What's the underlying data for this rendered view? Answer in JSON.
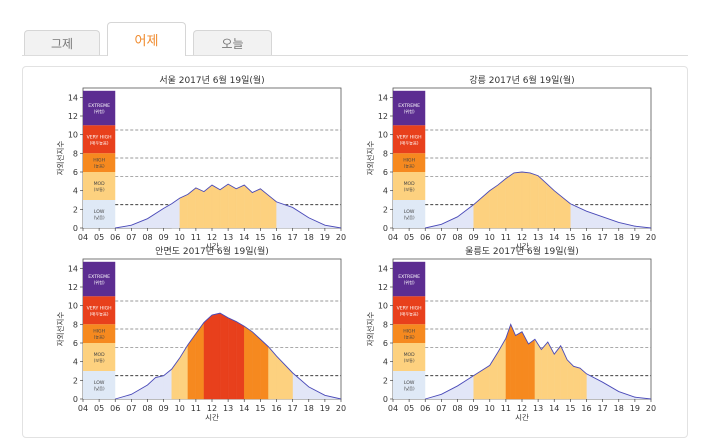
{
  "tabs": [
    {
      "label": "그제",
      "active": false
    },
    {
      "label": "어제",
      "active": true
    },
    {
      "label": "오늘",
      "active": false
    }
  ],
  "colors": {
    "extreme": "#5c2d91",
    "very_high": "#e8401c",
    "high": "#f6891f",
    "moderate": "#fdd17f",
    "low": "#dfe9f6",
    "curve_line": "#4a4ab8",
    "curve_fill": "#e2e6f7",
    "active_tab": "#f08a2c"
  },
  "legend_bands": [
    {
      "label": "EXTREME",
      "sub": "(위험)",
      "from": 11,
      "to": 14.7,
      "color_key": "extreme"
    },
    {
      "label": "VERY HIGH",
      "sub": "(매우높음)",
      "from": 8,
      "to": 11,
      "color_key": "very_high"
    },
    {
      "label": "HIGH",
      "sub": "(높음)",
      "from": 6,
      "to": 8,
      "color_key": "high"
    },
    {
      "label": "MOD",
      "sub": "(보통)",
      "from": 3,
      "to": 6,
      "color_key": "moderate"
    },
    {
      "label": "LOW",
      "sub": "(낮음)",
      "from": 0,
      "to": 3,
      "color_key": "low"
    }
  ],
  "chart_data": [
    {
      "type": "area",
      "title": "서울 2017년 6월 19일(월)",
      "xlabel": "시간",
      "ylabel": "자외선지수",
      "xlim": [
        4,
        20
      ],
      "ylim": [
        0,
        15
      ],
      "xticks": [
        "04",
        "05",
        "06",
        "07",
        "08",
        "09",
        "10",
        "11",
        "12",
        "13",
        "14",
        "15",
        "16",
        "17",
        "18",
        "19",
        "20"
      ],
      "yticks": [
        "0",
        "2",
        "4",
        "6",
        "8",
        "10",
        "12",
        "14"
      ],
      "threshold_lines": [
        2.5,
        5.5,
        7.5,
        10.5
      ],
      "series": [
        {
          "x": [
            6,
            7,
            8,
            9,
            9.5,
            10,
            10.5,
            11,
            11.5,
            12,
            12.5,
            13,
            13.5,
            14,
            14.5,
            15,
            15.5,
            16,
            17,
            18,
            19,
            20
          ],
          "y": [
            0,
            0.3,
            1,
            2.1,
            2.6,
            3.2,
            3.6,
            4.3,
            3.9,
            4.6,
            4.1,
            4.7,
            4.2,
            4.6,
            3.8,
            4.2,
            3.5,
            2.8,
            2.2,
            1.1,
            0.3,
            0
          ]
        }
      ]
    },
    {
      "type": "area",
      "title": "강릉 2017년 6월 19일(월)",
      "xlabel": "시간",
      "ylabel": "자외선지수",
      "xlim": [
        4,
        20
      ],
      "ylim": [
        0,
        15
      ],
      "xticks": [
        "04",
        "05",
        "06",
        "07",
        "08",
        "09",
        "10",
        "11",
        "12",
        "13",
        "14",
        "15",
        "16",
        "17",
        "18",
        "19",
        "20"
      ],
      "yticks": [
        "0",
        "2",
        "4",
        "6",
        "8",
        "10",
        "12",
        "14"
      ],
      "threshold_lines": [
        2.5,
        5.5,
        7.5,
        10.5
      ],
      "series": [
        {
          "x": [
            6,
            7,
            8,
            9,
            10,
            10.5,
            11,
            11.5,
            12,
            12.5,
            13,
            13.5,
            14,
            15,
            16,
            17,
            18,
            19,
            20
          ],
          "y": [
            0,
            0.4,
            1.2,
            2.5,
            4.0,
            4.6,
            5.3,
            5.9,
            6.0,
            5.9,
            5.6,
            4.8,
            4.0,
            2.6,
            1.8,
            1.2,
            0.6,
            0.2,
            0
          ]
        }
      ]
    },
    {
      "type": "area",
      "title": "안면도 2017년 6월 19일(월)",
      "xlabel": "시간",
      "ylabel": "자외선지수",
      "xlim": [
        4,
        20
      ],
      "ylim": [
        0,
        15
      ],
      "xticks": [
        "04",
        "05",
        "06",
        "07",
        "08",
        "09",
        "10",
        "11",
        "12",
        "13",
        "14",
        "15",
        "16",
        "17",
        "18",
        "19",
        "20"
      ],
      "yticks": [
        "0",
        "2",
        "4",
        "6",
        "8",
        "10",
        "12",
        "14"
      ],
      "threshold_lines": [
        2.5,
        5.5,
        7.5,
        10.5
      ],
      "series": [
        {
          "x": [
            6,
            7,
            8,
            8.5,
            9,
            9.5,
            10,
            10.5,
            11,
            11.5,
            12,
            12.5,
            13,
            13.5,
            14,
            14.5,
            15,
            15.5,
            16,
            17,
            18,
            19,
            20
          ],
          "y": [
            0,
            0.5,
            1.5,
            2.3,
            2.5,
            3.2,
            4.4,
            5.8,
            7.0,
            8.2,
            9.0,
            9.2,
            8.7,
            8.3,
            7.8,
            7.2,
            6.4,
            5.6,
            4.6,
            2.8,
            1.3,
            0.4,
            0
          ]
        }
      ]
    },
    {
      "type": "area",
      "title": "울릉도 2017년 6월 19일(월)",
      "xlabel": "시간",
      "ylabel": "자외선지수",
      "xlim": [
        4,
        20
      ],
      "ylim": [
        0,
        15
      ],
      "xticks": [
        "04",
        "05",
        "06",
        "07",
        "08",
        "09",
        "10",
        "11",
        "12",
        "13",
        "14",
        "15",
        "16",
        "17",
        "18",
        "19",
        "20"
      ],
      "yticks": [
        "0",
        "2",
        "4",
        "6",
        "8",
        "10",
        "12",
        "14"
      ],
      "threshold_lines": [
        2.5,
        5.5,
        7.5,
        10.5
      ],
      "series": [
        {
          "x": [
            6,
            7,
            8,
            9,
            10,
            10.5,
            11,
            11.3,
            11.6,
            12,
            12.4,
            12.8,
            13.2,
            13.6,
            14,
            14.4,
            14.8,
            15.2,
            15.6,
            16,
            17,
            18,
            19,
            20
          ],
          "y": [
            0,
            0.5,
            1.4,
            2.5,
            3.6,
            5.0,
            6.5,
            8.0,
            6.8,
            7.2,
            5.9,
            6.4,
            5.3,
            6.1,
            4.8,
            5.7,
            4.2,
            3.5,
            3.3,
            2.7,
            1.8,
            0.8,
            0.2,
            0
          ]
        }
      ]
    }
  ]
}
